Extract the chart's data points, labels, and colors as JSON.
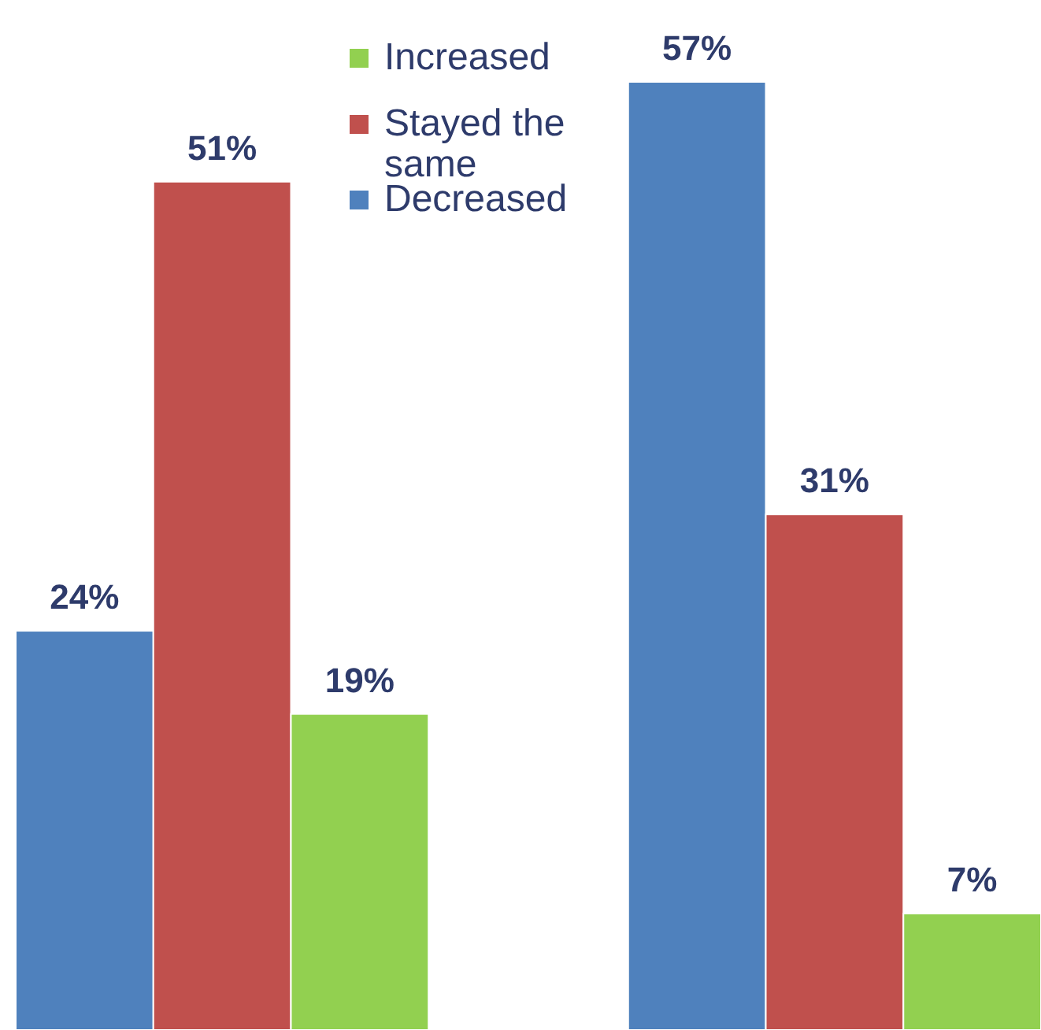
{
  "chart_data": {
    "type": "bar",
    "categories": [
      null,
      null
    ],
    "series": [
      {
        "name": "Decreased",
        "color": "#4f81bd",
        "values": [
          24,
          57
        ],
        "value_labels": [
          "24%",
          "57%"
        ]
      },
      {
        "name": "Stayed the same",
        "color": "#c0504d",
        "values": [
          51,
          31
        ],
        "value_labels": [
          "51%",
          "31%"
        ]
      },
      {
        "name": "Increased",
        "color": "#92d050",
        "values": [
          19,
          7
        ],
        "value_labels": [
          "19%",
          "7%"
        ]
      }
    ],
    "legend": "top"
  }
}
